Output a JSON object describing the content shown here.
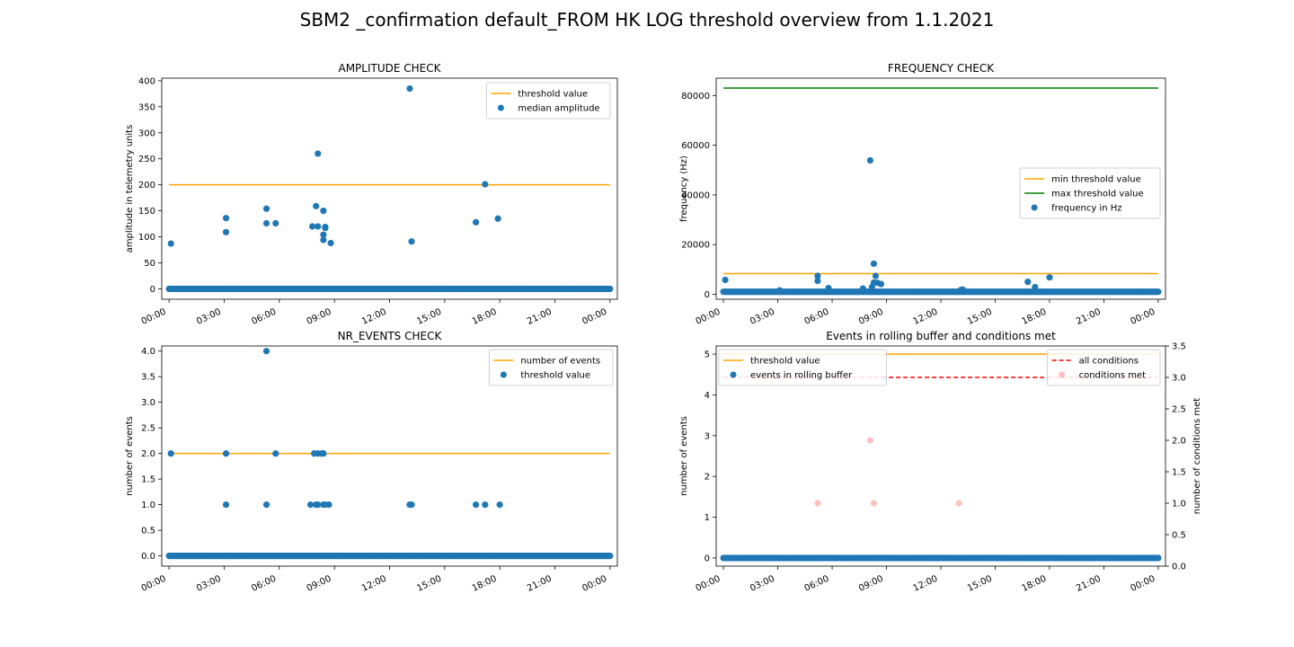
{
  "figure": {
    "suptitle": "SBM2 _confirmation default_FROM HK LOG threshold overview from 1.1.2021"
  },
  "chart_data": [
    {
      "type": "scatter",
      "title": "AMPLITUDE CHECK",
      "xlabel": "",
      "ylabel": "amplitude in telemetry units",
      "xlim": [
        -0.4,
        24.4
      ],
      "ylim": [
        -20,
        405
      ],
      "xticks": [
        "00:00",
        "03:00",
        "06:00",
        "09:00",
        "12:00",
        "15:00",
        "18:00",
        "21:00",
        "00:00"
      ],
      "yticks": [
        0,
        50,
        100,
        150,
        200,
        250,
        300,
        350,
        400
      ],
      "grid": false,
      "legend_placement": "upper right",
      "series": [
        {
          "name": "threshold value",
          "kind": "line",
          "color": "#ffa500",
          "x": [
            0,
            24
          ],
          "y": [
            200,
            200
          ]
        },
        {
          "name": "median amplitude",
          "kind": "scatter",
          "color": "#1f77b4",
          "baseline": {
            "value": 0,
            "from": 0,
            "to": 24,
            "step": 0.05
          },
          "x": [
            0.1,
            3.1,
            3.1,
            5.3,
            5.3,
            5.8,
            7.8,
            8.0,
            8.1,
            8.1,
            8.4,
            8.4,
            8.4,
            8.5,
            8.5,
            8.8,
            13.1,
            13.2,
            16.7,
            17.2,
            17.9
          ],
          "y": [
            87,
            136,
            109,
            154,
            126,
            126,
            120,
            159,
            120,
            260,
            150,
            104,
            94,
            119,
            117,
            88,
            385,
            91,
            128,
            201,
            135
          ]
        }
      ]
    },
    {
      "type": "scatter",
      "title": "FREQUENCY CHECK",
      "xlabel": "",
      "ylabel": "frequency (Hz)",
      "xlim": [
        -0.4,
        24.4
      ],
      "ylim": [
        -2000,
        87000
      ],
      "xticks": [
        "00:00",
        "03:00",
        "06:00",
        "09:00",
        "12:00",
        "15:00",
        "18:00",
        "21:00",
        "00:00"
      ],
      "yticks": [
        0,
        20000,
        40000,
        60000,
        80000
      ],
      "grid": false,
      "legend_placement": "center right",
      "series": [
        {
          "name": "min threshold value",
          "kind": "line",
          "color": "#ffa500",
          "x": [
            0,
            24
          ],
          "y": [
            8300,
            8300
          ]
        },
        {
          "name": "max threshold value",
          "kind": "line",
          "color": "#008000",
          "x": [
            0,
            24
          ],
          "y": [
            83000,
            83000
          ]
        },
        {
          "name": "frequency in Hz",
          "kind": "scatter",
          "color": "#1f77b4",
          "baseline": {
            "value": 1000,
            "from": 0,
            "to": 24,
            "step": 0.05
          },
          "x": [
            0.1,
            3.1,
            5.2,
            5.2,
            5.8,
            7.7,
            8.1,
            8.2,
            8.3,
            8.3,
            8.4,
            8.5,
            8.7,
            13.1,
            13.2,
            16.8,
            17.2,
            18.0
          ],
          "y": [
            5800,
            1600,
            7400,
            5400,
            2500,
            2300,
            53900,
            2900,
            4700,
            12300,
            7400,
            4600,
            4100,
            1700,
            1900,
            5000,
            2900,
            6800
          ]
        }
      ]
    },
    {
      "type": "scatter",
      "title": "NR_EVENTS CHECK",
      "xlabel": "",
      "ylabel": "number of events",
      "xlim": [
        -0.4,
        24.4
      ],
      "ylim": [
        -0.2,
        4.1
      ],
      "xticks": [
        "00:00",
        "03:00",
        "06:00",
        "09:00",
        "12:00",
        "15:00",
        "18:00",
        "21:00",
        "00:00"
      ],
      "yticks": [
        "0.0",
        "0.5",
        "1.0",
        "1.5",
        "2.0",
        "2.5",
        "3.0",
        "3.5",
        "4.0"
      ],
      "grid": false,
      "legend_placement": "upper right",
      "series": [
        {
          "name": "number of events",
          "kind": "line",
          "color": "#ffa500",
          "x": [
            0,
            24
          ],
          "y": [
            2,
            2
          ]
        },
        {
          "name": "threshold value",
          "kind": "scatter",
          "color": "#1f77b4",
          "baseline": {
            "value": 0,
            "from": 0,
            "to": 24,
            "step": 0.05
          },
          "x": [
            0.1,
            3.1,
            3.1,
            5.3,
            5.3,
            5.8,
            7.7,
            7.9,
            8.0,
            8.1,
            8.1,
            8.3,
            8.4,
            8.4,
            8.5,
            8.7,
            13.1,
            13.2,
            16.7,
            17.2,
            18.0
          ],
          "y": [
            2,
            2,
            1,
            4,
            1,
            2,
            1,
            2,
            1,
            2,
            1,
            2,
            2,
            1,
            1,
            1,
            1,
            1,
            1,
            1,
            1
          ]
        }
      ]
    },
    {
      "type": "scatter",
      "title": "Events in rolling buffer and conditions met",
      "xlabel": "",
      "ylabel": "number of events",
      "ylabel_right": "number of conditions met",
      "xlim": [
        -0.4,
        24.4
      ],
      "ylim": [
        -0.2,
        5.2
      ],
      "ylim_right": [
        0,
        3.5
      ],
      "xticks": [
        "00:00",
        "03:00",
        "06:00",
        "09:00",
        "12:00",
        "15:00",
        "18:00",
        "21:00",
        "00:00"
      ],
      "yticks": [
        0,
        1,
        2,
        3,
        4,
        5
      ],
      "yticks_right": [
        "0.0",
        "0.5",
        "1.0",
        "1.5",
        "2.0",
        "2.5",
        "3.0",
        "3.5"
      ],
      "grid": false,
      "legend_placement": "upper left; upper right",
      "series": [
        {
          "name": "threshold value",
          "kind": "line",
          "color": "#ffa500",
          "axis": "left",
          "x": [
            0,
            24
          ],
          "y": [
            5,
            5
          ]
        },
        {
          "name": "events in rolling buffer",
          "kind": "scatter",
          "color": "#1f77b4",
          "axis": "left",
          "baseline": {
            "value": 0,
            "from": 0,
            "to": 24,
            "step": 0.05
          },
          "x": [],
          "y": []
        },
        {
          "name": "all conditions",
          "kind": "dashed-line",
          "color": "#ff0000",
          "axis": "right",
          "x": [
            0,
            24
          ],
          "y": [
            3,
            3
          ]
        },
        {
          "name": "conditions met",
          "kind": "scatter",
          "color": "#ffc0c0",
          "axis": "right",
          "x": [
            5.2,
            8.1,
            8.3,
            13.0
          ],
          "y": [
            1,
            2,
            1,
            1
          ]
        }
      ]
    }
  ]
}
